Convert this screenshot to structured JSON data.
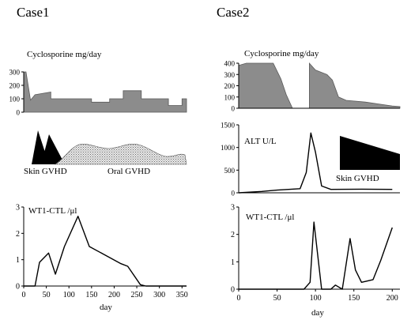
{
  "case1": {
    "title": "Case1",
    "cyclosporine": {
      "label": "Cyclosporine mg/day",
      "yticks": [
        "300",
        "200",
        "100",
        "0"
      ],
      "ymax": 300,
      "xmax": 360,
      "points": [
        [
          0,
          300
        ],
        [
          5,
          300
        ],
        [
          15,
          90
        ],
        [
          25,
          130
        ],
        [
          60,
          150
        ],
        [
          60,
          100
        ],
        [
          150,
          100
        ],
        [
          150,
          75
        ],
        [
          190,
          75
        ],
        [
          190,
          100
        ],
        [
          220,
          100
        ],
        [
          220,
          160
        ],
        [
          260,
          160
        ],
        [
          260,
          100
        ],
        [
          320,
          100
        ],
        [
          320,
          50
        ],
        [
          350,
          50
        ],
        [
          350,
          100
        ],
        [
          360,
          100
        ]
      ]
    },
    "gvhd": {
      "skin_label": "Skin GVHD",
      "oral_label": "Oral GVHD"
    },
    "wt1": {
      "label": "WT1-CTL /μl",
      "yticks": [
        "3",
        "2",
        "1",
        "0"
      ],
      "ymax": 3,
      "xmax": 360,
      "xticks": [
        "0",
        "50",
        "100",
        "150",
        "200",
        "250",
        "300",
        "350"
      ],
      "xtick_values": [
        0,
        50,
        100,
        150,
        200,
        250,
        300,
        350
      ],
      "xlabel": "day",
      "points": [
        [
          0,
          0
        ],
        [
          25,
          0
        ],
        [
          35,
          0.9
        ],
        [
          55,
          1.25
        ],
        [
          70,
          0.45
        ],
        [
          90,
          1.5
        ],
        [
          120,
          2.65
        ],
        [
          145,
          1.5
        ],
        [
          215,
          0.85
        ],
        [
          230,
          0.75
        ],
        [
          258,
          0.05
        ],
        [
          270,
          0
        ],
        [
          360,
          0
        ]
      ]
    }
  },
  "case2": {
    "title": "Case2",
    "cyclosporine": {
      "label": "Cyclosporine mg/day",
      "yticks": [
        "400",
        "300",
        "200",
        "100",
        "0"
      ],
      "ymax": 400,
      "xmax": 210,
      "segments": [
        [
          [
            0,
            380
          ],
          [
            10,
            400
          ],
          [
            45,
            400
          ],
          [
            55,
            260
          ],
          [
            62,
            120
          ],
          [
            70,
            0
          ]
        ],
        [
          [
            92,
            0
          ],
          [
            92,
            400
          ],
          [
            100,
            340
          ],
          [
            115,
            300
          ],
          [
            122,
            250
          ],
          [
            130,
            100
          ],
          [
            140,
            70
          ],
          [
            165,
            55
          ],
          [
            185,
            35
          ],
          [
            200,
            20
          ],
          [
            210,
            15
          ]
        ]
      ]
    },
    "alt": {
      "label": "ALT U/L",
      "yticks": [
        "1500",
        "1000",
        "500",
        "0"
      ],
      "ymax": 1500,
      "xmax": 210,
      "points": [
        [
          0,
          0
        ],
        [
          30,
          30
        ],
        [
          50,
          60
        ],
        [
          80,
          90
        ],
        [
          88,
          450
        ],
        [
          94,
          1320
        ],
        [
          100,
          900
        ],
        [
          108,
          150
        ],
        [
          120,
          75
        ],
        [
          160,
          80
        ],
        [
          200,
          75
        ]
      ],
      "skin_label": "Skin GVHD"
    },
    "wt1": {
      "label": "WT1-CTL /μl",
      "yticks": [
        "3",
        "2",
        "1",
        "0"
      ],
      "ymax": 3,
      "xmax": 210,
      "xticks": [
        "0",
        "50",
        "100",
        "150",
        "200"
      ],
      "xtick_values": [
        0,
        50,
        100,
        150,
        200
      ],
      "xlabel": "day",
      "points": [
        [
          0,
          0
        ],
        [
          85,
          0
        ],
        [
          93,
          0.25
        ],
        [
          98,
          2.45
        ],
        [
          108,
          0
        ],
        [
          120,
          0
        ],
        [
          126,
          0.15
        ],
        [
          135,
          0
        ],
        [
          145,
          1.85
        ],
        [
          152,
          0.7
        ],
        [
          160,
          0.25
        ],
        [
          175,
          0.35
        ],
        [
          185,
          1.05
        ],
        [
          200,
          2.25
        ]
      ]
    }
  },
  "chart_data": [
    {
      "type": "area",
      "title": "Case1",
      "ylabel": "Cyclosporine mg/day",
      "ylim": [
        0,
        300
      ],
      "x": [
        0,
        5,
        15,
        25,
        60,
        150,
        190,
        220,
        260,
        320,
        350,
        360
      ],
      "values": [
        300,
        300,
        90,
        130,
        150,
        100,
        75,
        100,
        160,
        100,
        50,
        100
      ]
    },
    {
      "type": "line",
      "title": "Case1",
      "ylabel": "WT1-CTL /μl",
      "xlabel": "day",
      "ylim": [
        0,
        3
      ],
      "xlim": [
        0,
        360
      ],
      "x": [
        0,
        25,
        35,
        55,
        70,
        90,
        120,
        145,
        215,
        230,
        258,
        270,
        360
      ],
      "values": [
        0,
        0,
        0.9,
        1.25,
        0.45,
        1.5,
        2.65,
        1.5,
        0.85,
        0.75,
        0.05,
        0,
        0
      ]
    },
    {
      "type": "area",
      "title": "Case2",
      "ylabel": "Cyclosporine mg/day",
      "ylim": [
        0,
        400
      ],
      "x": [
        0,
        10,
        45,
        55,
        62,
        70,
        92,
        100,
        115,
        122,
        130,
        140,
        165,
        185,
        200,
        210
      ],
      "values": [
        380,
        400,
        400,
        260,
        120,
        0,
        400,
        340,
        300,
        250,
        100,
        70,
        55,
        35,
        20,
        15
      ]
    },
    {
      "type": "line",
      "title": "Case2",
      "ylabel": "ALT U/L",
      "ylim": [
        0,
        1500
      ],
      "x": [
        0,
        30,
        50,
        80,
        88,
        94,
        100,
        108,
        120,
        160,
        200
      ],
      "values": [
        0,
        30,
        60,
        90,
        450,
        1320,
        900,
        150,
        75,
        80,
        75
      ]
    },
    {
      "type": "line",
      "title": "Case2",
      "ylabel": "WT1-CTL /μl",
      "xlabel": "day",
      "ylim": [
        0,
        3
      ],
      "xlim": [
        0,
        210
      ],
      "x": [
        0,
        85,
        93,
        98,
        108,
        120,
        126,
        135,
        145,
        152,
        160,
        175,
        185,
        200
      ],
      "values": [
        0,
        0,
        0.25,
        2.45,
        0,
        0,
        0.15,
        0,
        1.85,
        0.7,
        0.25,
        0.35,
        1.05,
        2.25
      ]
    }
  ]
}
